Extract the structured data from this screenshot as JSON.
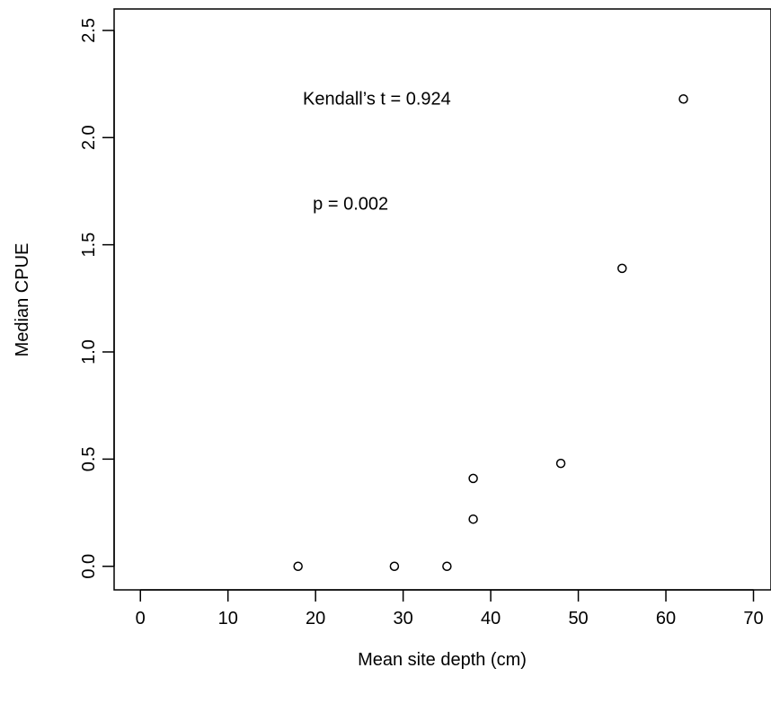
{
  "chart_data": {
    "type": "scatter",
    "title": "",
    "xlabel": "Mean site depth (cm)",
    "ylabel": "Median CPUE",
    "xlim": [
      -3,
      72
    ],
    "ylim": [
      -0.11,
      2.6
    ],
    "xticks": [
      "0",
      "10",
      "20",
      "30",
      "40",
      "50",
      "60",
      "70"
    ],
    "yticks": [
      "0.0",
      "0.5",
      "1.0",
      "1.5",
      "2.0",
      "2.5"
    ],
    "grid": false,
    "marker": "open-circle",
    "points": [
      {
        "x": 18,
        "y": 0.0
      },
      {
        "x": 29,
        "y": 0.0
      },
      {
        "x": 35,
        "y": 0.0
      },
      {
        "x": 38,
        "y": 0.22
      },
      {
        "x": 38,
        "y": 0.41
      },
      {
        "x": 48,
        "y": 0.48
      },
      {
        "x": 55,
        "y": 1.39
      },
      {
        "x": 62,
        "y": 2.18
      }
    ],
    "annotations": [
      {
        "text": "Kendall’s t = 0.924",
        "x": 27,
        "y": 2.18
      },
      {
        "text": "p = 0.002",
        "x": 24,
        "y": 1.69
      }
    ],
    "colors": {
      "marker": "#000000",
      "axis": "#000000",
      "background": "#ffffff"
    }
  }
}
